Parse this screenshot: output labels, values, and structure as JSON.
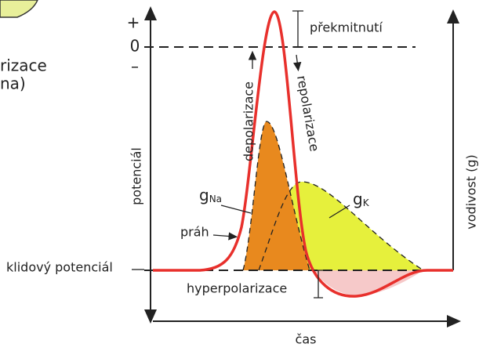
{
  "left_fragment": {
    "lines": [
      "rizace",
      "na)"
    ]
  },
  "axes": {
    "potential_label": "potenciál",
    "conductance_label": "vodivost (g)",
    "time_label": "čas",
    "ticks": {
      "plus": "+",
      "zero": "0",
      "minus": "–"
    }
  },
  "labels": {
    "overshoot": "překmitnutí",
    "depolarization": "depolarizace",
    "repolarization": "repolarizace",
    "threshold": "práh",
    "resting_potential": "klidový potenciál",
    "hyperpolarization": "hyperpolarizace",
    "g_na": {
      "symbol": "g",
      "subscript": "Na"
    },
    "g_k": {
      "symbol": "g",
      "subscript": "K"
    }
  }
}
